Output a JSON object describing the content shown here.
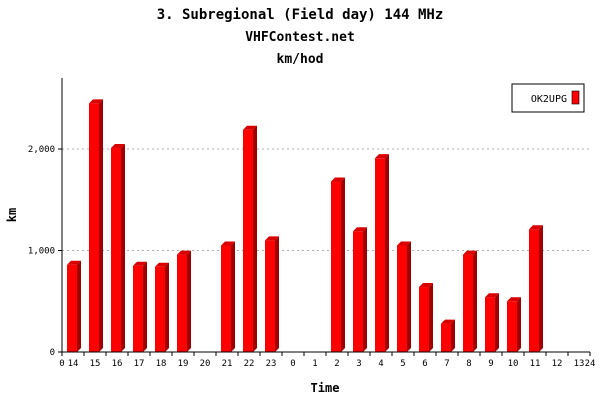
{
  "chart_data": {
    "type": "bar",
    "title": "3. Subregional (Field day) 144 MHz",
    "subtitle": "VHFContest.net",
    "units_line": "km/hod",
    "xlabel": "Time",
    "ylabel": "km",
    "y_ticks": [
      "0",
      "1,000",
      "2,000"
    ],
    "ylim": [
      0,
      2700
    ],
    "grid": true,
    "legend_position": "top-right",
    "x_start_label": "0",
    "x_end_label": "24",
    "categories": [
      "14",
      "15",
      "16",
      "17",
      "18",
      "19",
      "20",
      "21",
      "22",
      "23",
      "0",
      "1",
      "2",
      "3",
      "4",
      "5",
      "6",
      "7",
      "8",
      "9",
      "10",
      "11",
      "12",
      "13"
    ],
    "series": [
      {
        "name": "OK2UPG",
        "color": "#ff0000",
        "values": [
          860,
          2450,
          2010,
          850,
          840,
          960,
          0,
          1050,
          2190,
          1100,
          0,
          0,
          1680,
          1190,
          1910,
          1050,
          640,
          280,
          960,
          540,
          500,
          1210,
          0,
          0
        ]
      }
    ]
  }
}
